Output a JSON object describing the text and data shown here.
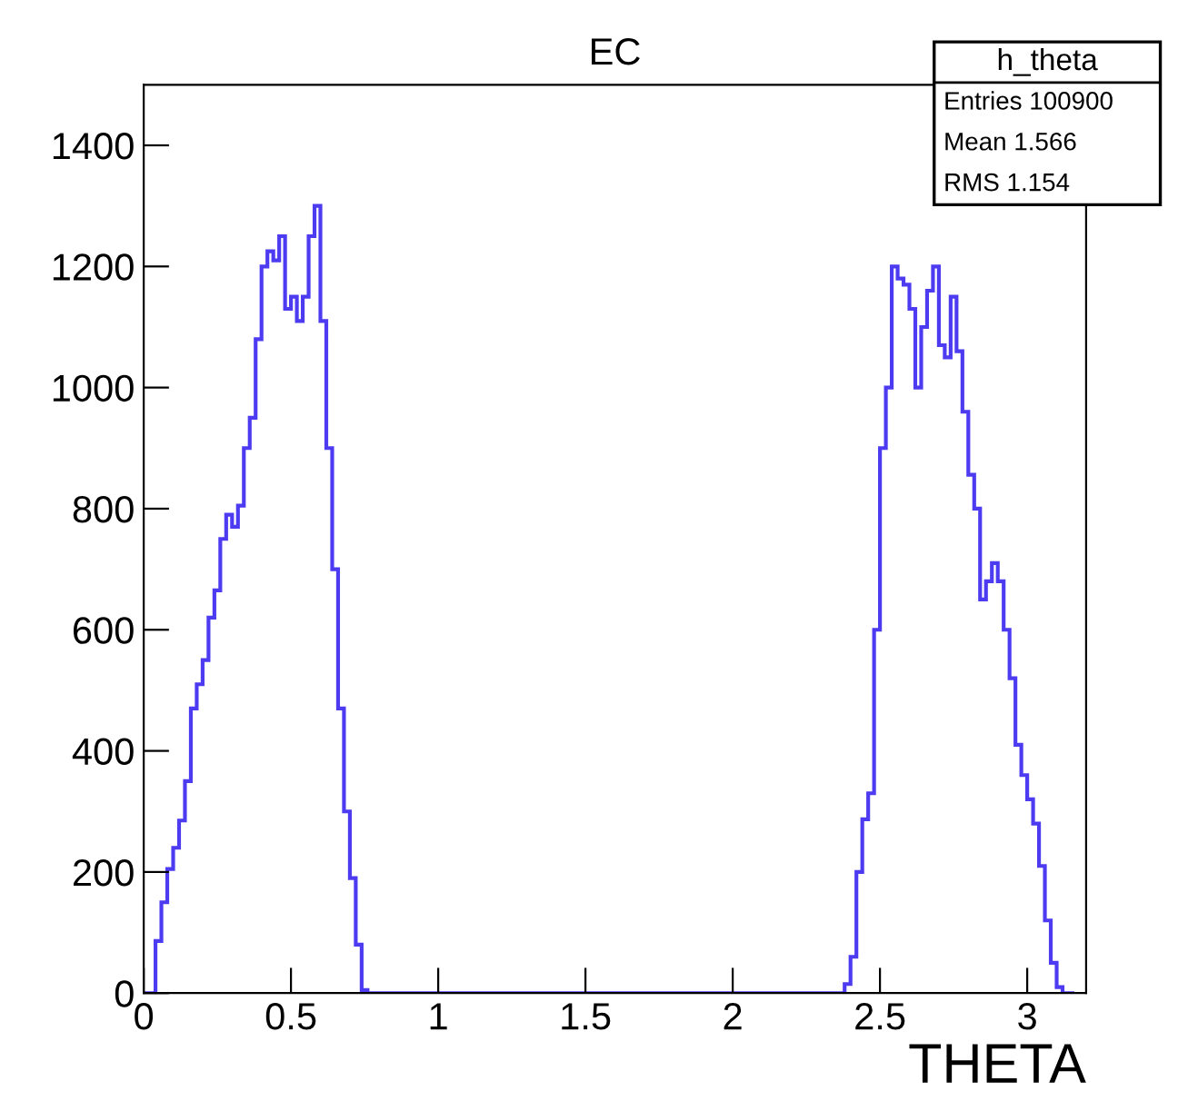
{
  "chart_data": {
    "type": "histogram",
    "title": "EC",
    "xlabel": "THETA",
    "bins": [
      0,
      0.02,
      0.04,
      0.06,
      0.08,
      0.1,
      0.12,
      0.14,
      0.16,
      0.18,
      0.2,
      0.22,
      0.24,
      0.26,
      0.28,
      0.3,
      0.32,
      0.34,
      0.36,
      0.38,
      0.4,
      0.42,
      0.44,
      0.46,
      0.48,
      0.5,
      0.52,
      0.54,
      0.56,
      0.58,
      0.6,
      0.62,
      0.64,
      0.66,
      0.68,
      0.7,
      0.72,
      0.74,
      0.76,
      0.78,
      0.8,
      2.36,
      2.38,
      2.4,
      2.42,
      2.44,
      2.46,
      2.48,
      2.5,
      2.52,
      2.54,
      2.56,
      2.58,
      2.6,
      2.62,
      2.64,
      2.66,
      2.68,
      2.7,
      2.72,
      2.74,
      2.76,
      2.78,
      2.8,
      2.82,
      2.84,
      2.86,
      2.88,
      2.9,
      2.92,
      2.94,
      2.96,
      2.98,
      3.0,
      3.02,
      3.04,
      3.06,
      3.08,
      3.1,
      3.12,
      3.14,
      3.16
    ],
    "values": [
      0,
      0,
      86,
      150,
      205,
      240,
      285,
      350,
      470,
      510,
      550,
      620,
      665,
      750,
      790,
      770,
      805,
      900,
      950,
      1080,
      1200,
      1225,
      1210,
      1250,
      1130,
      1150,
      1110,
      1150,
      1250,
      1300,
      1110,
      900,
      700,
      470,
      300,
      190,
      80,
      5,
      0,
      0,
      0,
      0,
      15,
      60,
      200,
      287,
      330,
      600,
      900,
      1000,
      1200,
      1180,
      1170,
      1130,
      1000,
      1100,
      1160,
      1200,
      1070,
      1050,
      1150,
      1060,
      960,
      856,
      800,
      650,
      680,
      710,
      680,
      600,
      520,
      410,
      360,
      320,
      280,
      210,
      120,
      50,
      10,
      0,
      0
    ],
    "color": "#4d3bf2",
    "xlim": [
      0,
      3.2
    ],
    "ylim": [
      0,
      1500
    ],
    "xticks": [
      0,
      0.5,
      1,
      1.5,
      2,
      2.5,
      3
    ],
    "yticks": [
      0,
      200,
      400,
      600,
      800,
      1000,
      1200,
      1400
    ],
    "grid": false,
    "legend": false,
    "annotations": [
      "h_theta",
      "Entries 100900",
      "Mean 1.566",
      "RMS 1.154"
    ]
  }
}
